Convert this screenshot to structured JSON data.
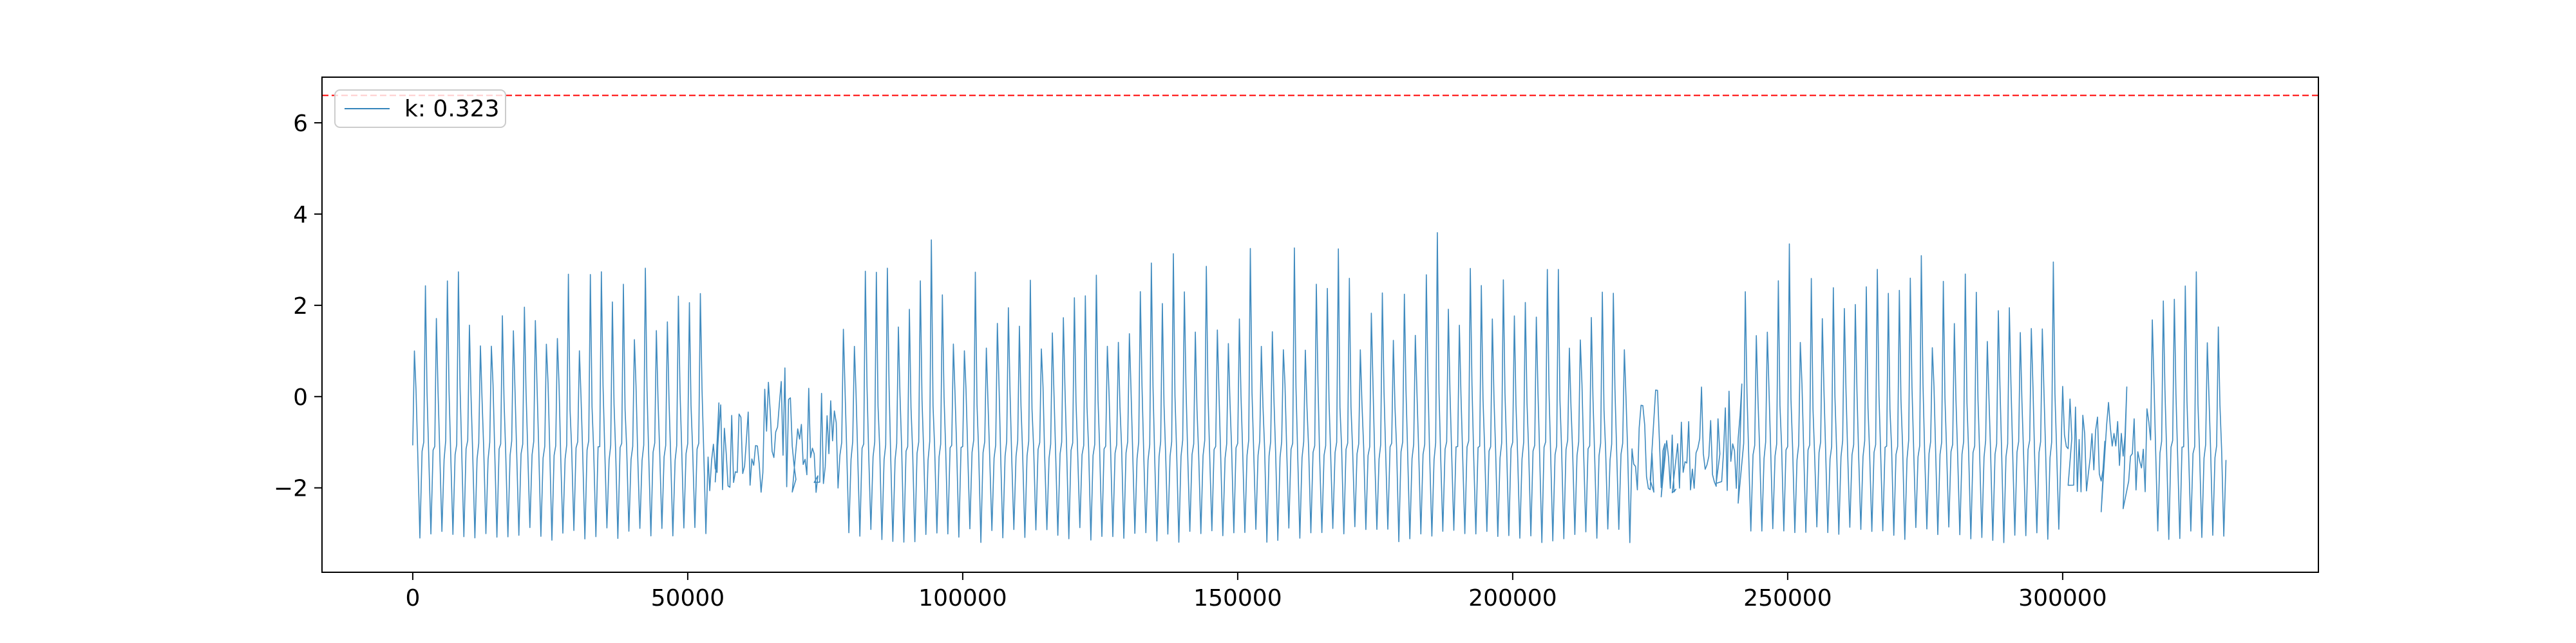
{
  "chart_data": {
    "type": "line",
    "title": "",
    "xlabel": "",
    "ylabel": "",
    "xlim": [
      -16500,
      346500
    ],
    "ylim": [
      -3.85,
      7.0
    ],
    "x_ticks": [
      0,
      50000,
      100000,
      150000,
      200000,
      250000,
      300000
    ],
    "x_tick_labels": [
      "0",
      "50000",
      "100000",
      "150000",
      "200000",
      "250000",
      "300000"
    ],
    "y_ticks": [
      -2,
      0,
      2,
      4,
      6
    ],
    "y_tick_labels": [
      "−2",
      "0",
      "2",
      "4",
      "6"
    ],
    "grid": false,
    "legend": {
      "placement": "upper-left",
      "entries": [
        {
          "label": "k: 0.323",
          "color": "#1f77b4",
          "style": "solid"
        }
      ]
    },
    "threshold": {
      "y": 6.6,
      "color": "#ff0000",
      "style": "dashed"
    },
    "series": [
      {
        "color": "#1f77b4",
        "x_range": [
          0,
          330000
        ],
        "baseline_high": -1.1,
        "baseline_low": -3.2,
        "typical_peak_range": [
          1.0,
          2.9
        ],
        "max_peak": 3.65,
        "periodicity_samples": 2000,
        "disordered_segments": [
          [
            53000,
            77000
          ],
          [
            222000,
            240000
          ],
          [
            300000,
            315000
          ]
        ],
        "disordered_value_range": [
          -2.1,
          0.8
        ]
      }
    ]
  }
}
